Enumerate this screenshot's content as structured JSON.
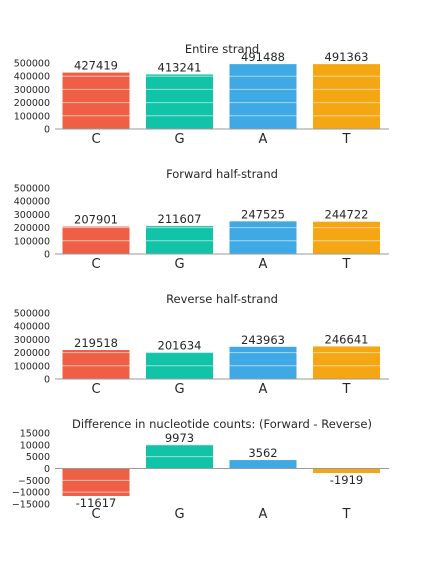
{
  "chart_data": [
    {
      "type": "bar",
      "title": "Entire strand",
      "categories": [
        "C",
        "G",
        "A",
        "T"
      ],
      "values": [
        427419,
        413241,
        491488,
        491363
      ],
      "ylim": [
        0,
        500000
      ],
      "yticks": [
        0,
        100000,
        200000,
        300000,
        400000,
        500000
      ],
      "grid": true
    },
    {
      "type": "bar",
      "title": "Forward half-strand",
      "categories": [
        "C",
        "G",
        "A",
        "T"
      ],
      "values": [
        207901,
        211607,
        247525,
        244722
      ],
      "ylim": [
        0,
        500000
      ],
      "yticks": [
        0,
        100000,
        200000,
        300000,
        400000,
        500000
      ],
      "grid": true
    },
    {
      "type": "bar",
      "title": "Reverse half-strand",
      "categories": [
        "C",
        "G",
        "A",
        "T"
      ],
      "values": [
        219518,
        201634,
        243963,
        246641
      ],
      "ylim": [
        0,
        500000
      ],
      "yticks": [
        0,
        100000,
        200000,
        300000,
        400000,
        500000
      ],
      "grid": true
    },
    {
      "type": "bar",
      "title": "Difference in nucleotide counts: (Forward - Reverse)",
      "categories": [
        "C",
        "G",
        "A",
        "T"
      ],
      "values": [
        -11617,
        9973,
        3562,
        -1919
      ],
      "ylim": [
        -15000,
        15000
      ],
      "yticks": [
        -15000,
        -10000,
        -5000,
        0,
        5000,
        10000,
        15000
      ],
      "grid": true
    }
  ],
  "colors": {
    "C": "#ef5f46",
    "G": "#12c4a7",
    "A": "#3fa9e6",
    "T": "#f5a613"
  }
}
